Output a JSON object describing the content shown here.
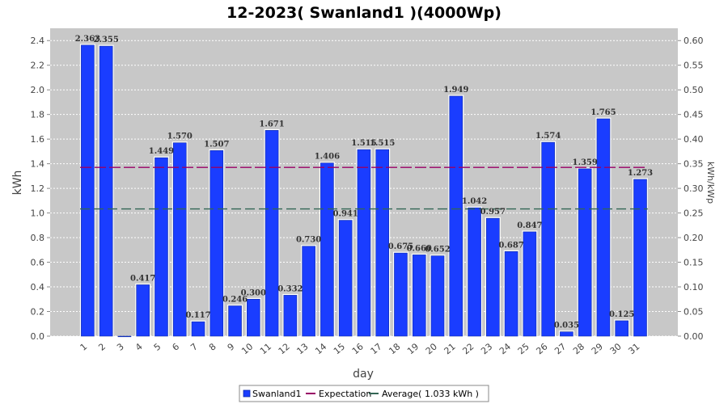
{
  "chart_data": {
    "type": "bar",
    "title": "12-2023( Swanland1 )(4000Wp)",
    "xlabel": "day",
    "ylabel": "kWh",
    "ylabel_right": "kWh/kWp",
    "ylim": [
      0,
      2.5
    ],
    "ylim_right": [
      0,
      0.625
    ],
    "yticks": [
      "0.0",
      "0.2",
      "0.4",
      "0.6",
      "0.8",
      "1.0",
      "1.2",
      "1.4",
      "1.6",
      "1.8",
      "2.0",
      "2.2",
      "2.4"
    ],
    "yticks_right": [
      "0.00",
      "0.05",
      "0.10",
      "0.15",
      "0.20",
      "0.25",
      "0.30",
      "0.35",
      "0.40",
      "0.45",
      "0.50",
      "0.55",
      "0.60"
    ],
    "categories": [
      "1",
      "2",
      "3",
      "4",
      "5",
      "6",
      "7",
      "8",
      "9",
      "10",
      "11",
      "12",
      "13",
      "14",
      "15",
      "16",
      "17",
      "18",
      "19",
      "20",
      "21",
      "22",
      "23",
      "24",
      "25",
      "26",
      "27",
      "28",
      "29",
      "30",
      "31"
    ],
    "series": [
      {
        "name": "Swanland1",
        "color": "#1a3dff",
        "values": [
          2.363,
          2.355,
          0.0,
          0.417,
          1.449,
          1.57,
          0.117,
          1.507,
          0.246,
          0.3,
          1.671,
          0.332,
          0.73,
          1.406,
          0.941,
          1.515,
          1.515,
          0.675,
          0.66,
          0.652,
          1.949,
          1.042,
          0.957,
          0.687,
          0.847,
          1.574,
          0.035,
          1.359,
          1.765,
          0.125,
          1.273
        ],
        "labels": [
          "2.363",
          "2.355",
          "",
          "0.417",
          "1.449",
          "1.570",
          "0.117",
          "1.507",
          "0.246",
          "0.300",
          "1.671",
          "0.332",
          "0.730",
          "1.406",
          "0.941",
          "1.515",
          "1.515",
          "0.675",
          "0.660",
          "0.652",
          "1.949",
          "1.042",
          "0.957",
          "0.687",
          "0.847",
          "1.574",
          "0.035",
          "1.359",
          "1.765",
          "0.125",
          "1.273"
        ]
      }
    ],
    "lines": [
      {
        "name": "Expectation",
        "value": 1.37,
        "color": "#990066"
      },
      {
        "name": "Average( 1.033 kWh )",
        "value": 1.033,
        "color": "#336655"
      }
    ],
    "grid": true,
    "legend_position": "bottom"
  }
}
